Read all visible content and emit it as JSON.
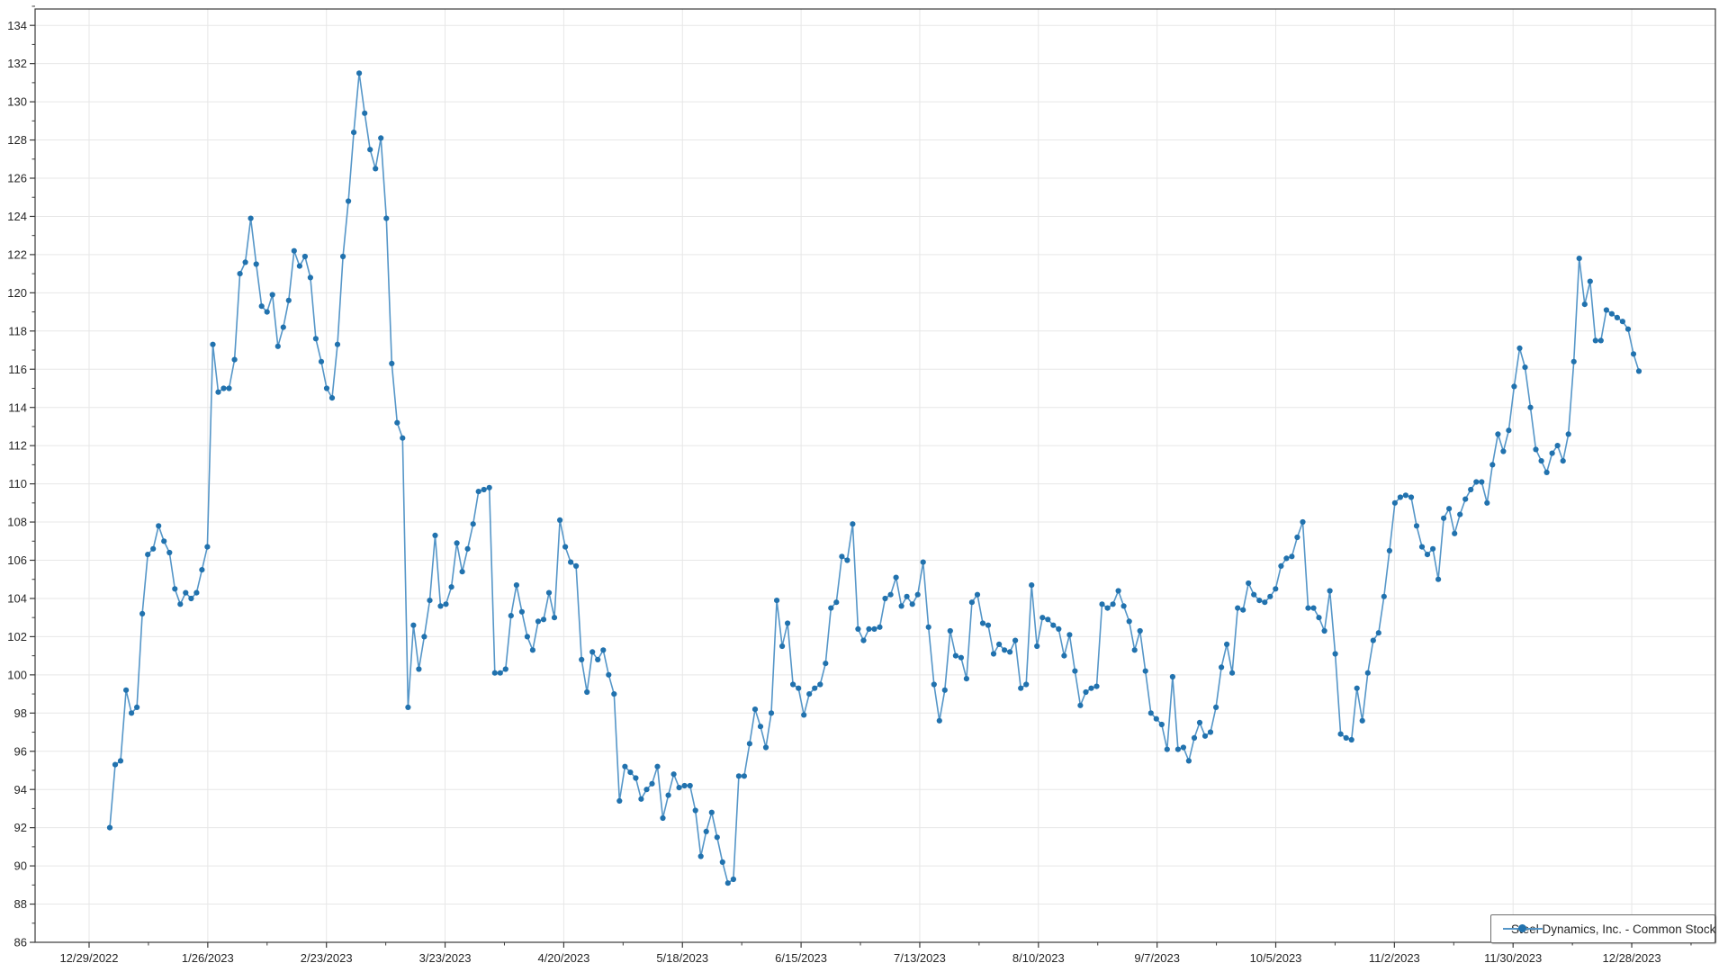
{
  "legend": {
    "label": "Steel Dynamics, Inc. - Common Stock"
  },
  "chart_data": {
    "type": "line",
    "title": "",
    "xlabel": "",
    "ylabel": "",
    "grid": true,
    "legend_position": "bottom-right",
    "line_color": "#5596c8",
    "marker_color": "#2172ae",
    "grid_color": "#e7e7e7",
    "axis_color": "#3a3a3a",
    "ylim": [
      86,
      134.9
    ],
    "y_tick_step": 2,
    "y_tick_labels": [
      "86",
      "88",
      "90",
      "92",
      "94",
      "96",
      "98",
      "100",
      "102",
      "104",
      "106",
      "108",
      "110",
      "112",
      "114",
      "116",
      "118",
      "120",
      "122",
      "124",
      "126",
      "128",
      "130",
      "132",
      "134"
    ],
    "x_tick_labels": [
      "12/29/2022",
      "1/26/2023",
      "2/23/2023",
      "3/23/2023",
      "4/20/2023",
      "5/18/2023",
      "6/15/2023",
      "7/13/2023",
      "8/10/2023",
      "9/7/2023",
      "10/5/2023",
      "11/2/2023",
      "11/30/2023",
      "12/28/2023"
    ],
    "series": [
      {
        "name": "Steel Dynamics, Inc. - Common Stock",
        "values": [
          92.0,
          95.3,
          95.5,
          99.2,
          98.0,
          98.3,
          103.2,
          106.3,
          106.6,
          107.8,
          107.0,
          106.4,
          104.5,
          103.7,
          104.3,
          104.0,
          104.3,
          105.5,
          106.7,
          117.3,
          114.8,
          115.0,
          115.0,
          116.5,
          121.0,
          121.6,
          123.9,
          121.5,
          119.3,
          119.0,
          119.9,
          117.2,
          118.2,
          119.6,
          122.2,
          121.4,
          121.9,
          120.8,
          117.6,
          116.4,
          115.0,
          114.5,
          117.3,
          121.9,
          124.8,
          128.4,
          131.5,
          129.4,
          127.5,
          126.5,
          128.1,
          123.9,
          116.3,
          113.2,
          112.4,
          98.3,
          102.6,
          100.3,
          102.0,
          103.9,
          107.3,
          103.6,
          103.7,
          104.6,
          106.9,
          105.4,
          106.6,
          107.9,
          109.6,
          109.7,
          109.8,
          100.1,
          100.1,
          100.3,
          103.1,
          104.7,
          103.3,
          102.0,
          101.3,
          102.8,
          102.9,
          104.3,
          103.0,
          108.1,
          106.7,
          105.9,
          105.7,
          100.8,
          99.1,
          101.2,
          100.8,
          101.3,
          100.0,
          99.0,
          93.4,
          95.2,
          94.9,
          94.6,
          93.5,
          94.0,
          94.3,
          95.2,
          92.5,
          93.7,
          94.8,
          94.1,
          94.2,
          94.2,
          92.9,
          90.5,
          91.8,
          92.8,
          91.5,
          90.2,
          89.1,
          89.3,
          94.7,
          94.7,
          96.4,
          98.2,
          97.3,
          96.2,
          98.0,
          103.9,
          101.5,
          102.7,
          99.5,
          99.3,
          97.9,
          99.0,
          99.3,
          99.5,
          100.6,
          103.5,
          103.8,
          106.2,
          106.0,
          107.9,
          102.4,
          101.8,
          102.4,
          102.4,
          102.5,
          104.0,
          104.2,
          105.1,
          103.6,
          104.1,
          103.7,
          104.2,
          105.9,
          102.5,
          99.5,
          97.6,
          99.2,
          102.3,
          101.0,
          100.9,
          99.8,
          103.8,
          104.2,
          102.7,
          102.6,
          101.1,
          101.6,
          101.3,
          101.2,
          101.8,
          99.3,
          99.5,
          104.7,
          101.5,
          103.0,
          102.9,
          102.6,
          102.4,
          101.0,
          102.1,
          100.2,
          98.4,
          99.1,
          99.3,
          99.4,
          103.7,
          103.5,
          103.7,
          104.4,
          103.6,
          102.8,
          101.3,
          102.3,
          100.2,
          98.0,
          97.7,
          97.4,
          96.1,
          99.9,
          96.1,
          96.2,
          95.5,
          96.7,
          97.5,
          96.8,
          97.0,
          98.3,
          100.4,
          101.6,
          100.1,
          103.5,
          103.4,
          104.8,
          104.2,
          103.9,
          103.8,
          104.1,
          104.5,
          105.7,
          106.1,
          106.2,
          107.2,
          108.0,
          103.5,
          103.5,
          103.0,
          102.3,
          104.4,
          101.1,
          96.9,
          96.7,
          96.6,
          99.3,
          97.6,
          100.1,
          101.8,
          102.2,
          104.1,
          106.5,
          109.0,
          109.3,
          109.4,
          109.3,
          107.8,
          106.7,
          106.3,
          106.6,
          105.0,
          108.2,
          108.7,
          107.4,
          108.4,
          109.2,
          109.7,
          110.1,
          110.1,
          109.0,
          111.0,
          112.6,
          111.7,
          112.8,
          115.1,
          117.1,
          116.1,
          114.0,
          111.8,
          111.2,
          110.6,
          111.6,
          112.0,
          111.2,
          112.6,
          116.4,
          121.8,
          119.4,
          120.6,
          117.5,
          117.5,
          119.1,
          118.9,
          118.7,
          118.5,
          118.1,
          116.8,
          115.9
        ]
      }
    ]
  }
}
